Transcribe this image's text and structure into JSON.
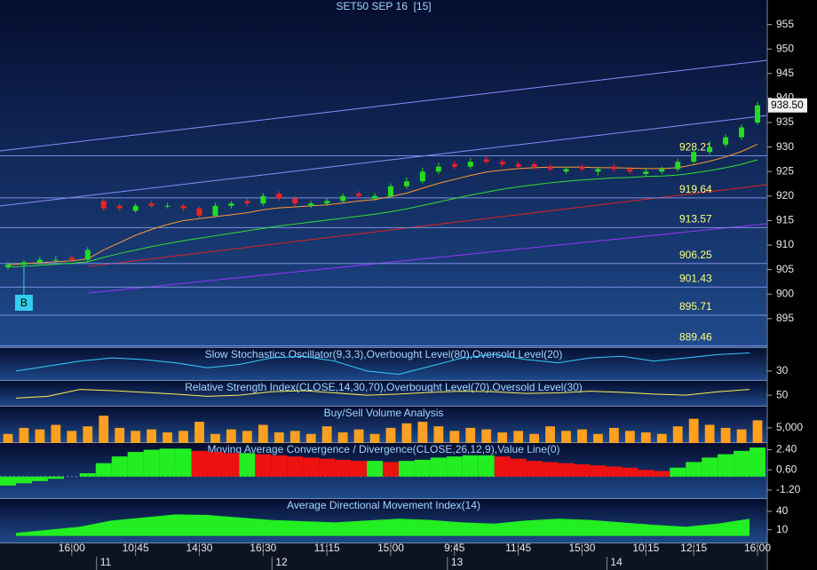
{
  "chart_data": [
    {
      "type": "candlestick",
      "title": "SET50 SEP 16  [15]",
      "categories": [
        null,
        null,
        null,
        null,
        "16:00",
        null,
        null,
        null,
        "10:45",
        null,
        null,
        null,
        "14:30",
        null,
        null,
        null,
        "16:30",
        null,
        null,
        null,
        "11:15",
        null,
        null,
        null,
        "15:00",
        null,
        null,
        null,
        "9:45",
        null,
        null,
        null,
        "11:45",
        null,
        null,
        null,
        "15:30",
        null,
        null,
        null,
        "10:15",
        null,
        null,
        "12:15",
        null,
        null,
        null,
        "16:00"
      ],
      "dates": [
        null,
        null,
        null,
        null,
        null,
        null,
        "11",
        null,
        null,
        null,
        null,
        null,
        null,
        null,
        null,
        null,
        null,
        "12",
        null,
        null,
        null,
        null,
        null,
        null,
        null,
        null,
        null,
        null,
        "13",
        null,
        null,
        null,
        null,
        null,
        null,
        null,
        null,
        null,
        "14",
        null,
        null,
        null,
        null,
        null,
        null,
        null,
        null,
        null
      ],
      "open": [
        905.5,
        906,
        906.5,
        907,
        907.5,
        907,
        919,
        918,
        917,
        918.5,
        918,
        918,
        917.5,
        916,
        918,
        919,
        918.5,
        920.5,
        919.5,
        918,
        918.5,
        919,
        920.5,
        919.5,
        920,
        922,
        923,
        925,
        926.5,
        926,
        927.5,
        927,
        926.5,
        926.5,
        926,
        925,
        926,
        925,
        926,
        925.5,
        924.5,
        925,
        925.5,
        927,
        929,
        930.5,
        932,
        935
      ],
      "high": [
        906.6,
        907,
        907.6,
        907.8,
        908,
        909.6,
        919.5,
        918.6,
        918.5,
        919,
        918.6,
        918.4,
        917.8,
        918.6,
        919,
        919.6,
        920.6,
        921,
        920,
        919,
        919.6,
        920.5,
        921,
        920.6,
        922.6,
        923.8,
        925.8,
        926.8,
        927.2,
        927.8,
        928.2,
        927.6,
        927,
        927,
        926.6,
        926,
        926.5,
        926,
        926.6,
        926,
        925.6,
        926,
        927.6,
        929.6,
        931.2,
        932.6,
        934.6,
        939.2
      ],
      "low": [
        905,
        905.5,
        906,
        906.4,
        906.5,
        906.6,
        917,
        917,
        916.6,
        917.4,
        917.5,
        917,
        915.4,
        915.6,
        917.5,
        918,
        918,
        919,
        918,
        917.6,
        918,
        918.6,
        919.5,
        919,
        919.6,
        921.5,
        922.6,
        924.5,
        925.5,
        925.5,
        926.5,
        926,
        925.5,
        925.4,
        925,
        924.5,
        925,
        924.2,
        925,
        924.5,
        924,
        924.5,
        925,
        926.6,
        928.5,
        930,
        931.5,
        934.5
      ],
      "close": [
        906,
        906.5,
        907,
        907,
        907,
        909,
        917.5,
        917.5,
        918,
        918,
        918,
        917.5,
        916,
        918,
        918.5,
        918.5,
        920,
        919.5,
        918.5,
        918.5,
        919,
        920,
        920,
        920,
        922,
        923,
        925,
        926,
        926,
        927,
        927,
        926.5,
        926,
        926,
        925.5,
        925.5,
        925.5,
        925.5,
        925.5,
        925,
        925,
        925.5,
        927,
        929,
        930,
        932,
        934,
        938.5
      ],
      "up_color": "#22dd22",
      "down_color": "#ee2222",
      "overlays": [
        {
          "color": "#ff9933",
          "values": [
            906,
            906.2,
            906.4,
            906.6,
            906.8,
            907.2,
            909,
            910.5,
            912,
            913.2,
            914.2,
            915,
            915.4,
            915.8,
            916.2,
            916.6,
            917.2,
            917.6,
            917.8,
            918,
            918.2,
            918.6,
            919,
            919.3,
            919.9,
            920.6,
            921.6,
            922.6,
            923.4,
            924.2,
            924.9,
            925.3,
            925.6,
            925.8,
            925.9,
            925.9,
            925.9,
            925.8,
            925.8,
            925.7,
            925.6,
            925.6,
            925.8,
            926.4,
            927.1,
            928,
            929.1,
            930.6
          ]
        },
        {
          "color": "#33dd33",
          "values": [
            905.5,
            905.7,
            905.9,
            906.1,
            906.3,
            906.6,
            907.5,
            908.3,
            909,
            909.7,
            910.3,
            910.9,
            911.4,
            911.9,
            912.4,
            912.9,
            913.4,
            913.9,
            914.3,
            914.7,
            915.1,
            915.5,
            915.9,
            916.3,
            916.8,
            917.4,
            918.1,
            918.8,
            919.5,
            920.2,
            920.8,
            921.4,
            921.9,
            922.3,
            922.7,
            923,
            923.3,
            923.5,
            923.7,
            923.8,
            924,
            924.1,
            924.3,
            924.7,
            925.2,
            925.8,
            926.5,
            927.4
          ]
        }
      ],
      "levels": [
        928.21,
        919.64,
        913.57,
        906.25,
        901.43,
        895.71,
        889.46
      ],
      "last_price": {
        "value": 938.5,
        "label": "938.50"
      },
      "annotation": "B",
      "ylim": [
        889,
        960
      ],
      "yticks": [
        895,
        900,
        905,
        910,
        915,
        920,
        925,
        930,
        935,
        940,
        945,
        950,
        955
      ]
    },
    {
      "type": "line",
      "title": "Slow Stochastics Oscillator(9,3,3),Overbought Level(80),Oversold Level(20)",
      "color": "#33ccff",
      "values": [
        30,
        45,
        60,
        70,
        65,
        55,
        40,
        50,
        70,
        75,
        60,
        30,
        20,
        45,
        70,
        80,
        65,
        55,
        70,
        75,
        60,
        70,
        80,
        85
      ],
      "ylim": [
        0,
        100
      ],
      "yticks": [
        30
      ]
    },
    {
      "type": "line",
      "title": "Relative Strength Index(CLOSE,14,30,70),Overbought Level(70),Oversold Level(30)",
      "color": "#ffee55",
      "values": [
        45,
        48,
        60,
        58,
        55,
        52,
        48,
        50,
        56,
        58,
        54,
        50,
        52,
        55,
        57,
        56,
        53,
        54,
        57,
        55,
        52,
        50,
        56,
        60
      ],
      "ylim": [
        30,
        75
      ],
      "yticks": [
        50
      ]
    },
    {
      "type": "bar",
      "title": "Buy/Sell Volume Analysis",
      "color": "#ffa020",
      "values": [
        3000,
        5000,
        4500,
        6000,
        4000,
        5500,
        9000,
        5000,
        4000,
        4500,
        3500,
        4000,
        7000,
        3000,
        4500,
        4000,
        6000,
        3500,
        4000,
        3000,
        5500,
        3500,
        4500,
        3000,
        5000,
        6500,
        7000,
        5500,
        4000,
        5000,
        4500,
        3500,
        4000,
        3000,
        5500,
        4000,
        4500,
        3000,
        5000,
        4000,
        3500,
        3000,
        5500,
        8000,
        6000,
        5000,
        4500,
        7500
      ],
      "ylim": [
        0,
        12000
      ],
      "yticks": [
        {
          "value": 5000,
          "label": "5,000"
        }
      ]
    },
    {
      "type": "histogram",
      "title": "Moving Average Convergence / Divergence(CLOSE,26,12,9),Value Line(0)",
      "up_color": "#22ee22",
      "down_color": "#ee1111",
      "values": [
        -0.8,
        -0.6,
        -0.4,
        -0.2,
        0,
        0.3,
        1.2,
        1.8,
        2.2,
        2.4,
        2.5,
        2.5,
        2.3,
        2.2,
        2.1,
        2.1,
        2.0,
        1.9,
        1.8,
        1.7,
        1.6,
        1.5,
        1.4,
        1.4,
        1.3,
        1.4,
        1.5,
        1.7,
        1.8,
        1.9,
        1.9,
        1.8,
        1.6,
        1.4,
        1.3,
        1.2,
        1.1,
        1.0,
        0.9,
        0.8,
        0.6,
        0.5,
        0.8,
        1.3,
        1.7,
        2.0,
        2.3,
        2.6
      ],
      "ylim": [
        -2,
        3
      ],
      "yticks": [
        {
          "value": 2.4,
          "label": "2.40"
        },
        {
          "value": 0.6,
          "label": "0.60"
        },
        {
          "value": -1.2,
          "label": "-1.20"
        }
      ]
    },
    {
      "type": "area",
      "title": "Average Directional Movement Index(14)",
      "color": "#22ee22",
      "values": [
        5,
        10,
        15,
        25,
        30,
        35,
        34,
        30,
        26,
        24,
        22,
        25,
        28,
        26,
        22,
        20,
        25,
        28,
        26,
        22,
        18,
        15,
        20,
        28
      ],
      "ylim": [
        -12,
        60
      ],
      "yticks": [
        40,
        10
      ]
    }
  ]
}
